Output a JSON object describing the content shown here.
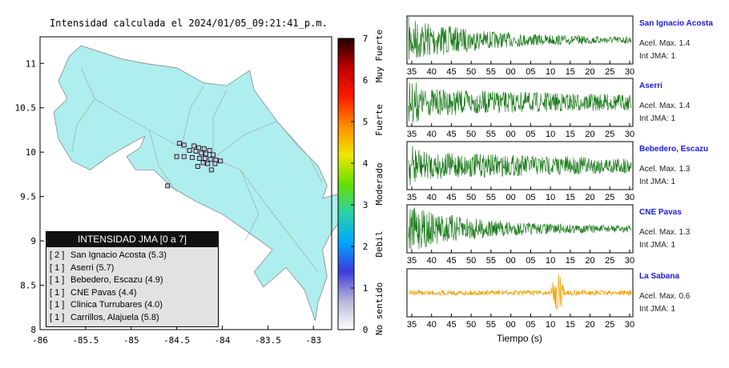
{
  "map": {
    "title": "Intensidad calculada el 2024/01/05_09:21:41_p.m.",
    "x_ticks": [
      "-86",
      "-85.5",
      "-85",
      "-84.5",
      "-84",
      "-83.5",
      "-83"
    ],
    "y_ticks": [
      "11",
      "10.5",
      "10",
      "9.5",
      "9",
      "8.5",
      "8"
    ],
    "xlim": [
      -86,
      -82.8
    ],
    "ylim": [
      8,
      11.3
    ],
    "land_color": "#aeeeee",
    "station_points": [
      {
        "lon": -84.47,
        "lat": 10.1
      },
      {
        "lon": -84.42,
        "lat": 10.08
      },
      {
        "lon": -84.31,
        "lat": 10.07
      },
      {
        "lon": -84.26,
        "lat": 10.05
      },
      {
        "lon": -84.2,
        "lat": 10.04
      },
      {
        "lon": -84.14,
        "lat": 10.02
      },
      {
        "lon": -84.36,
        "lat": 10.02
      },
      {
        "lon": -84.29,
        "lat": 10.01
      },
      {
        "lon": -84.23,
        "lat": 9.99
      },
      {
        "lon": -84.18,
        "lat": 9.98
      },
      {
        "lon": -84.1,
        "lat": 9.97
      },
      {
        "lon": -84.5,
        "lat": 9.95
      },
      {
        "lon": -84.42,
        "lat": 9.95
      },
      {
        "lon": -84.33,
        "lat": 9.94
      },
      {
        "lon": -84.25,
        "lat": 9.93
      },
      {
        "lon": -84.19,
        "lat": 9.93
      },
      {
        "lon": -84.13,
        "lat": 9.92
      },
      {
        "lon": -84.07,
        "lat": 9.91
      },
      {
        "lon": -84.02,
        "lat": 9.9
      },
      {
        "lon": -84.21,
        "lat": 9.88
      },
      {
        "lon": -84.16,
        "lat": 9.87
      },
      {
        "lon": -84.08,
        "lat": 9.87
      },
      {
        "lon": -84.27,
        "lat": 9.84
      },
      {
        "lon": -84.12,
        "lat": 9.8
      },
      {
        "lon": -84.6,
        "lat": 9.62
      }
    ]
  },
  "colorbar": {
    "ticks": [
      "0",
      "1",
      "2",
      "3",
      "4",
      "5",
      "6",
      "7"
    ],
    "labels": [
      "No sentido",
      "Debil",
      "Moderado",
      "Fuerte",
      "Muy Fuerte"
    ],
    "colors": [
      "#ffffff",
      "#b5b5d8",
      "#3b3bdc",
      "#00a8ff",
      "#2ad1a8",
      "#66e000",
      "#f0e600",
      "#ff8c00",
      "#ff1a00",
      "#c00000",
      "#200000"
    ]
  },
  "legend": {
    "title": "INTENSIDAD JMA [0 a 7]",
    "items": [
      {
        "count": "[ 2 ]",
        "name": "San Ignacio Acosta (5.3)"
      },
      {
        "count": "[ 1 ]",
        "name": "Aserri (5.7)"
      },
      {
        "count": "[ 1 ]",
        "name": "Bebedero, Escazu (4.9)"
      },
      {
        "count": "[ 1 ]",
        "name": "CNE Pavas (4.4)"
      },
      {
        "count": "[ 1 ]",
        "name": "Clinica Turrubares (4.0)"
      },
      {
        "count": "[ 1 ]",
        "name": "Carrillos, Alajuela (5.8)"
      }
    ]
  },
  "chart_data": {
    "type": "line",
    "xlabel": "Tiempo (s)",
    "series": [
      {
        "name": "San Ignacio Acosta",
        "accel": "Acel. Max. 1.4",
        "jma": "Int JMA: 1",
        "color": "#1a7a1a",
        "x_ticks": [
          "35",
          "40",
          "45",
          "50",
          "55",
          "00",
          "05",
          "10",
          "15",
          "20",
          "25",
          "30"
        ],
        "envelope": "decay"
      },
      {
        "name": "Aserri",
        "accel": "Acel. Max. 1.4",
        "jma": "Int JMA: 1",
        "color": "#1a7a1a",
        "x_ticks": [
          "35",
          "40",
          "45",
          "50",
          "55",
          "00",
          "05",
          "10",
          "15",
          "20",
          "25",
          "30"
        ],
        "envelope": "steady"
      },
      {
        "name": "Bebedero, Escazu",
        "accel": "Acel. Max. 1.3",
        "jma": "Int JMA: 1",
        "color": "#1a7a1a",
        "x_ticks": [
          "35",
          "40",
          "45",
          "50",
          "55",
          "00",
          "05",
          "10",
          "15",
          "20",
          "25",
          "30"
        ],
        "envelope": "steady"
      },
      {
        "name": "CNE Pavas",
        "accel": "Acel. Max. 1.3",
        "jma": "Int JMA: 1",
        "color": "#1a7a1a",
        "x_ticks": [
          "35",
          "40",
          "45",
          "50",
          "55",
          "00",
          "05",
          "10",
          "15",
          "20",
          "25",
          "30"
        ],
        "envelope": "decay"
      },
      {
        "name": "La Sabana",
        "accel": "Acel. Max. 0.6",
        "jma": "Int JMA: 1",
        "color": "#f0a000",
        "x_ticks": [
          "35",
          "40",
          "45",
          "50",
          "55",
          "00",
          "05",
          "10",
          "15",
          "20",
          "25",
          "30"
        ],
        "envelope": "spike"
      }
    ]
  }
}
